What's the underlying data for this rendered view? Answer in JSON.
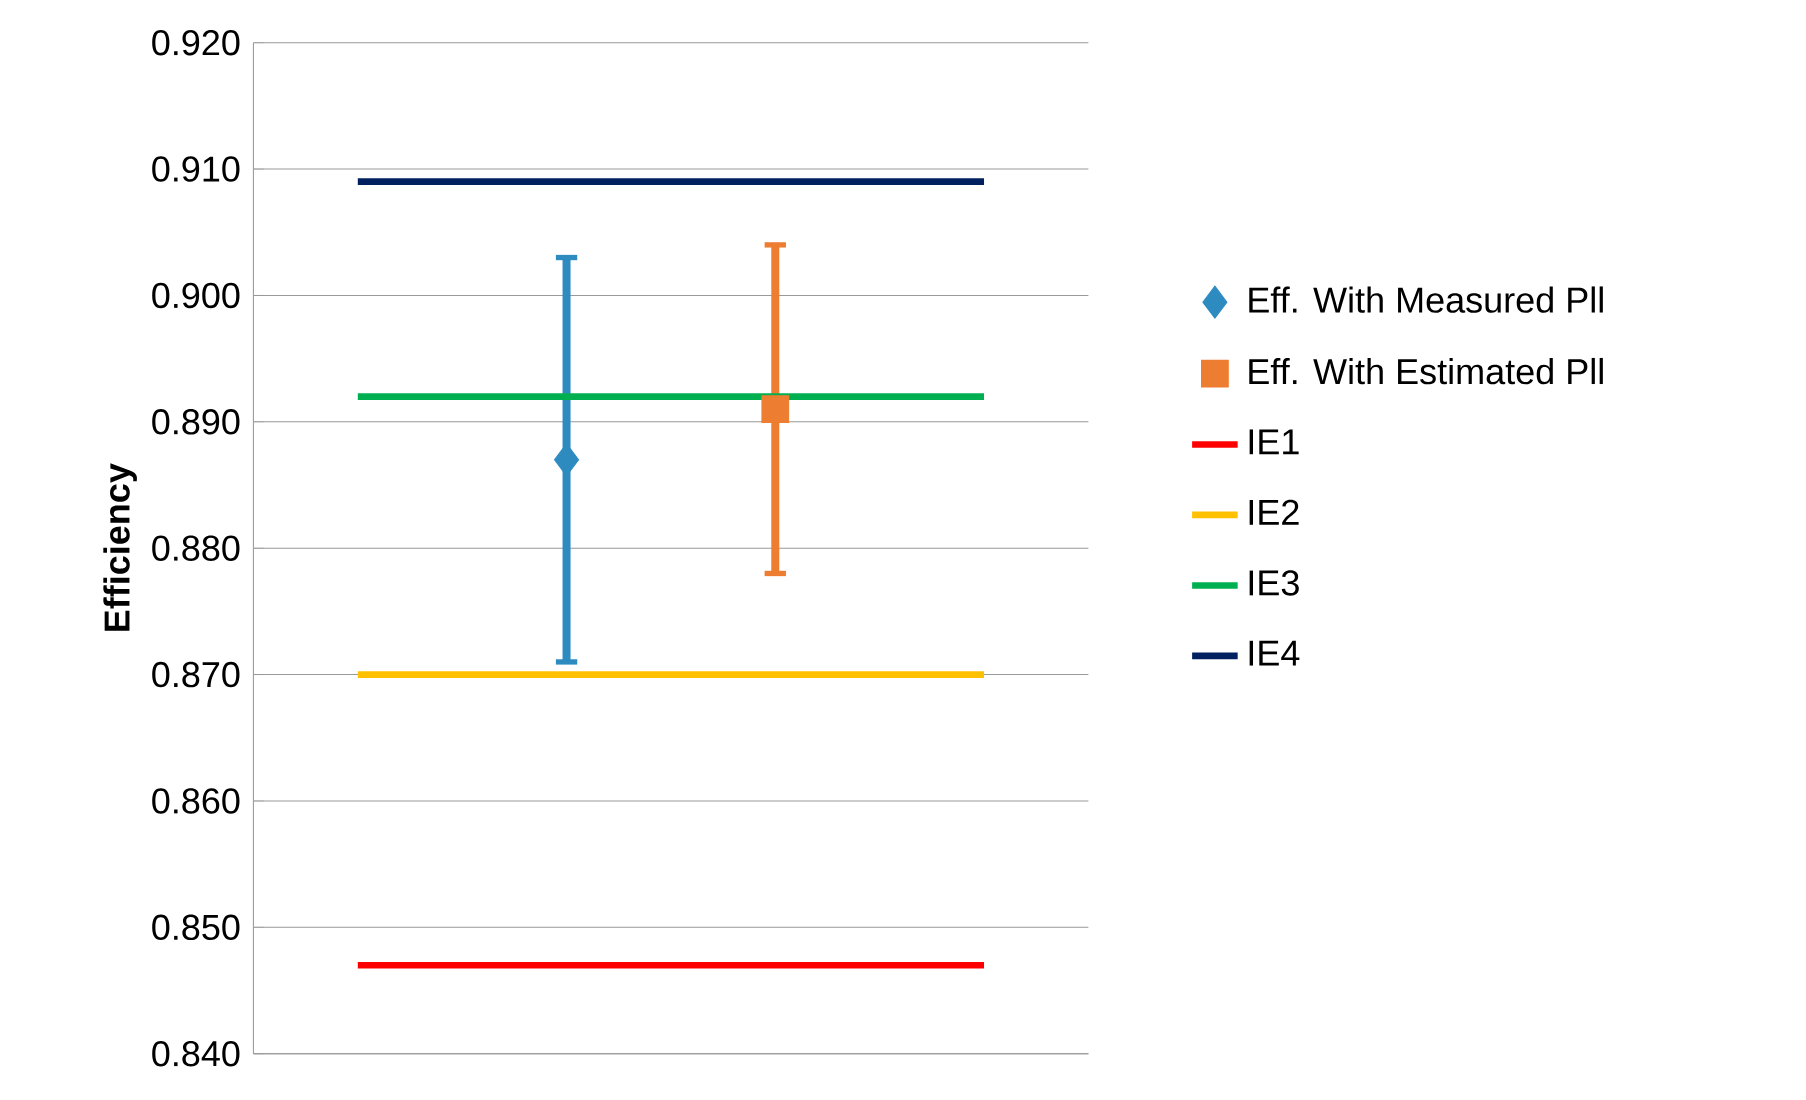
{
  "chart_data": {
    "type": "scatter",
    "ylabel": "Efficiency",
    "ylim": [
      0.84,
      0.92
    ],
    "categories": [
      null,
      null,
      null,
      null
    ],
    "yticks": [
      {
        "value": 0.84,
        "label": "0.840"
      },
      {
        "value": 0.85,
        "label": "0.850"
      },
      {
        "value": 0.86,
        "label": "0.860"
      },
      {
        "value": 0.87,
        "label": "0.870"
      },
      {
        "value": 0.88,
        "label": "0.880"
      },
      {
        "value": 0.89,
        "label": "0.890"
      },
      {
        "value": 0.9,
        "label": "0.900"
      },
      {
        "value": 0.91,
        "label": "0.910"
      },
      {
        "value": 0.92,
        "label": "0.920"
      }
    ],
    "tick_labels": "y",
    "grid": "y",
    "legend": "right",
    "series": [
      {
        "name": "Eff. With Measured Pll",
        "marker": "diamond",
        "color": "#2e8bc0",
        "values": [
          null,
          0.887,
          null,
          null
        ],
        "errors": [
          null,
          0.016,
          null,
          null
        ]
      },
      {
        "name": "Eff. With Estimated Pll",
        "marker": "square",
        "color": "#ed7d31",
        "values": [
          null,
          null,
          0.891,
          null
        ],
        "errors": [
          null,
          null,
          0.013,
          null
        ]
      },
      {
        "name": "IE1",
        "type": "line",
        "marker": "none",
        "color": "#ff0000",
        "values": [
          0.847,
          0.847,
          0.847,
          0.847
        ]
      },
      {
        "name": "IE2",
        "type": "line",
        "marker": "none",
        "color": "#ffc000",
        "values": [
          0.87,
          0.87,
          0.87,
          0.87
        ]
      },
      {
        "name": "IE3",
        "type": "line",
        "marker": "none",
        "color": "#00b050",
        "values": [
          0.892,
          0.892,
          0.892,
          0.892
        ]
      },
      {
        "name": "IE4",
        "type": "line",
        "marker": "none",
        "color": "#002060",
        "values": [
          0.909,
          0.909,
          0.909,
          0.909
        ]
      }
    ]
  }
}
